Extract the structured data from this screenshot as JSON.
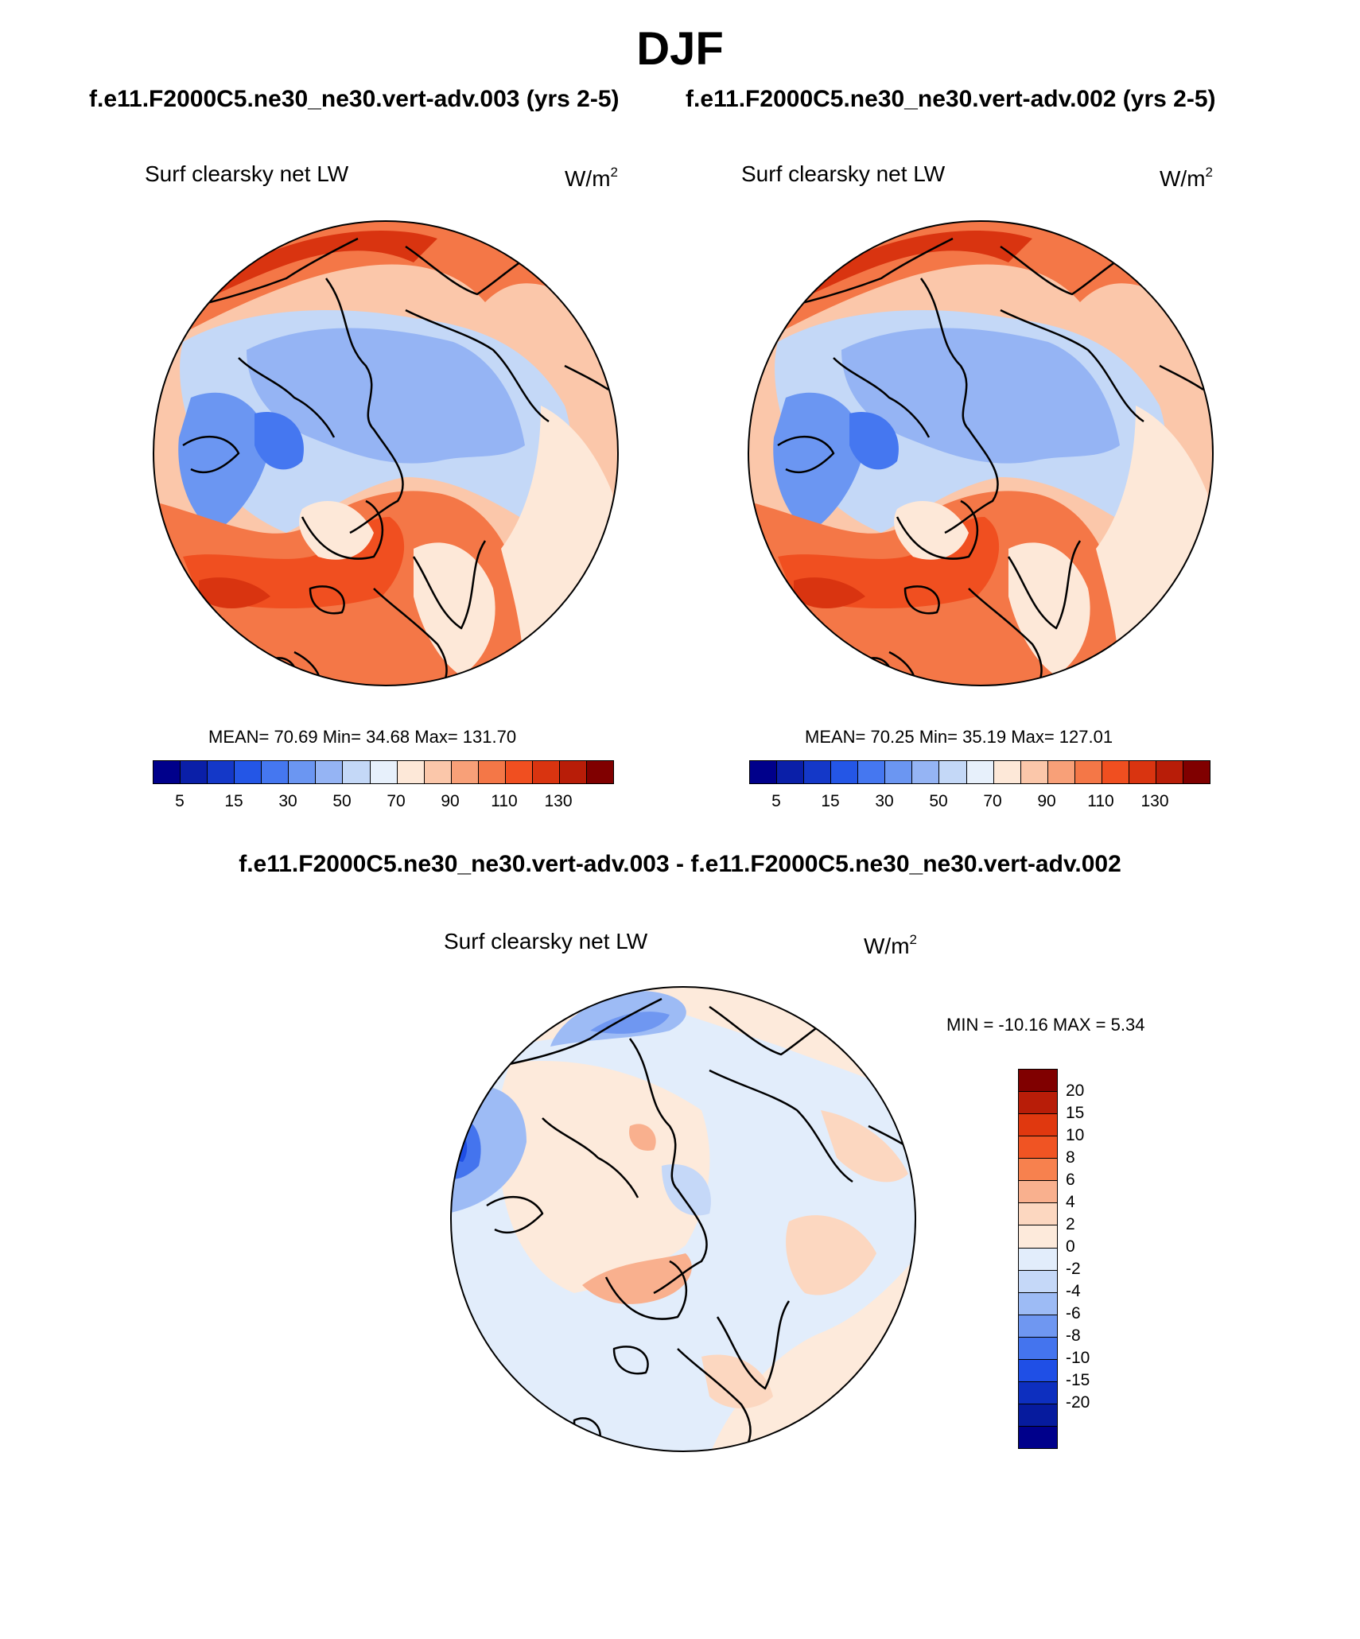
{
  "title": "DJF",
  "panel_a": {
    "case": "f.e11.F2000C5.ne30_ne30.vert-adv.003 (yrs 2-5)",
    "variable": "Surf clearsky net LW",
    "units_base": "W/m",
    "units_exp": "2",
    "stats": "MEAN=  70.69  Min=  34.68  Max= 131.70",
    "colorbar_ticks": [
      "5",
      "15",
      "30",
      "50",
      "70",
      "90",
      "110",
      "130"
    ]
  },
  "panel_b": {
    "case": "f.e11.F2000C5.ne30_ne30.vert-adv.002 (yrs 2-5)",
    "variable": "Surf clearsky net LW",
    "units_base": "W/m",
    "units_exp": "2",
    "stats": "MEAN=  70.25  Min=  35.19  Max= 127.01",
    "colorbar_ticks": [
      "5",
      "15",
      "30",
      "50",
      "70",
      "90",
      "110",
      "130"
    ]
  },
  "panel_diff": {
    "title": "f.e11.F2000C5.ne30_ne30.vert-adv.003 - f.e11.F2000C5.ne30_ne30.vert-adv.002",
    "variable": "Surf clearsky net LW",
    "units_base": "W/m",
    "units_exp": "2",
    "stats": "MIN = -10.16 MAX =   5.34",
    "colorbar_ticks": [
      "20",
      "15",
      "10",
      "8",
      "6",
      "4",
      "2",
      "0",
      "-2",
      "-4",
      "-6",
      "-8",
      "-10",
      "-15",
      "-20"
    ]
  },
  "colors": {
    "abs_scale": [
      "#00008b",
      "#0a1fa8",
      "#1438c8",
      "#2456e6",
      "#4577f0",
      "#6b96f2",
      "#95b4f4",
      "#c4d8f7",
      "#e7f0fb",
      "#fde8d8",
      "#fbc7aa",
      "#f8a078",
      "#f47747",
      "#f04f20",
      "#d93410",
      "#b81d08",
      "#800000"
    ],
    "diff_scale": [
      "#800000",
      "#b81d08",
      "#e0380f",
      "#f05423",
      "#f7814e",
      "#f9b08e",
      "#fcd7c0",
      "#fdeadb",
      "#e2edfb",
      "#c5d8f8",
      "#9dbbf5",
      "#6f97f1",
      "#4474ee",
      "#1f4fe6",
      "#0d2fbf",
      "#061b9e",
      "#00008b"
    ]
  }
}
